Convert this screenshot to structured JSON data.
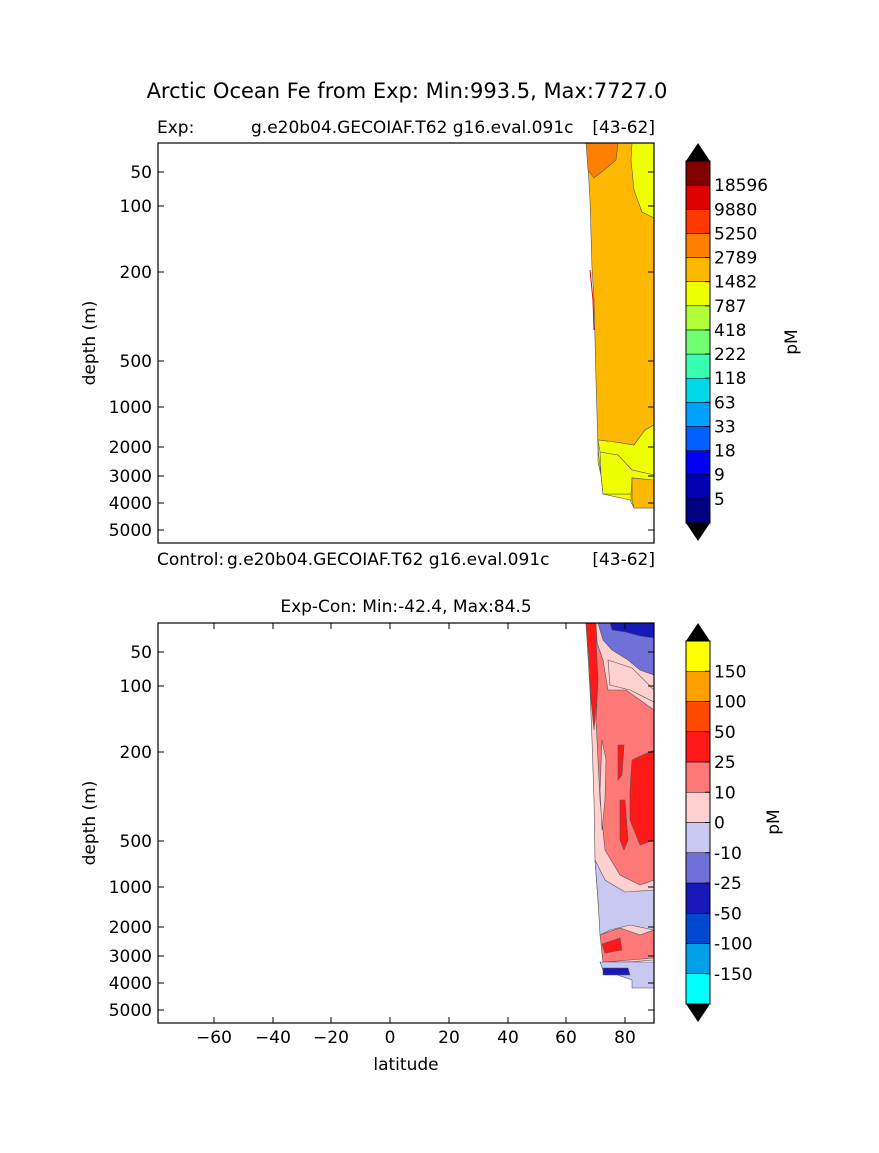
{
  "title": "Arctic Ocean Fe from Exp: Min:993.5, Max:7727.0",
  "panel1": {
    "left_label": "Exp:",
    "case_label": "g.e20b04.GECOIAF.T62 g16.eval.091c",
    "years": "[43-62]",
    "ylabel": "depth (m)",
    "yticks": [
      "50",
      "100",
      "200",
      "500",
      "1000",
      "2000",
      "3000",
      "4000",
      "5000"
    ],
    "colorbar": {
      "unit": "pM",
      "labels": [
        "5",
        "9",
        "18",
        "33",
        "63",
        "118",
        "222",
        "418",
        "787",
        "1482",
        "2789",
        "5250",
        "9880",
        "18596"
      ],
      "colors": [
        "#000080",
        "#0000b0",
        "#0000f0",
        "#0060ff",
        "#00a0ff",
        "#00d8e8",
        "#38ffb0",
        "#70ff70",
        "#b0ff38",
        "#f0ff00",
        "#ffb800",
        "#ff8000",
        "#ff3800",
        "#e00000",
        "#800000"
      ]
    }
  },
  "panel_mid": {
    "left_label": "Control:",
    "case_label": "g.e20b04.GECOIAF.T62 g16.eval.091c",
    "years": "[43-62]"
  },
  "panel2": {
    "title": "Exp-Con: Min:-42.4, Max:84.5",
    "ylabel": "depth (m)",
    "xlabel": "latitude",
    "yticks": [
      "50",
      "100",
      "200",
      "500",
      "1000",
      "2000",
      "3000",
      "4000",
      "5000"
    ],
    "xticks": [
      "−60",
      "−40",
      "−20",
      "0",
      "20",
      "40",
      "60",
      "80"
    ],
    "colorbar": {
      "unit": "pM",
      "labels": [
        "-150",
        "-100",
        "-50",
        "-25",
        "-10",
        "0",
        "10",
        "25",
        "50",
        "100",
        "150"
      ],
      "colors": [
        "#00ffff",
        "#00a0e8",
        "#0048d0",
        "#1818b8",
        "#7070d8",
        "#c8c8f0",
        "#ffd0d0",
        "#ff7878",
        "#ff1818",
        "#ff4800",
        "#ffa000",
        "#ffff00"
      ]
    }
  },
  "chart_data": [
    {
      "type": "heatmap",
      "title": "Exp: g.e20b04.GECOIAF.T62 g16.eval.091c [43-62]",
      "variable": "Fe",
      "units": "pM",
      "xlabel": "",
      "ylabel": "depth (m)",
      "xlim": [
        -80,
        90
      ],
      "ylim": [
        6000,
        25
      ],
      "data_extent_lat": [
        68,
        90
      ],
      "min": 993.5,
      "max": 7727.0
    },
    {
      "type": "heatmap",
      "title": "Exp-Con: Min:-42.4, Max:84.5",
      "variable": "Fe difference",
      "units": "pM",
      "xlabel": "latitude",
      "ylabel": "depth (m)",
      "xlim": [
        -80,
        90
      ],
      "ylim": [
        6000,
        25
      ],
      "data_extent_lat": [
        68,
        90
      ],
      "min": -42.4,
      "max": 84.5
    }
  ]
}
